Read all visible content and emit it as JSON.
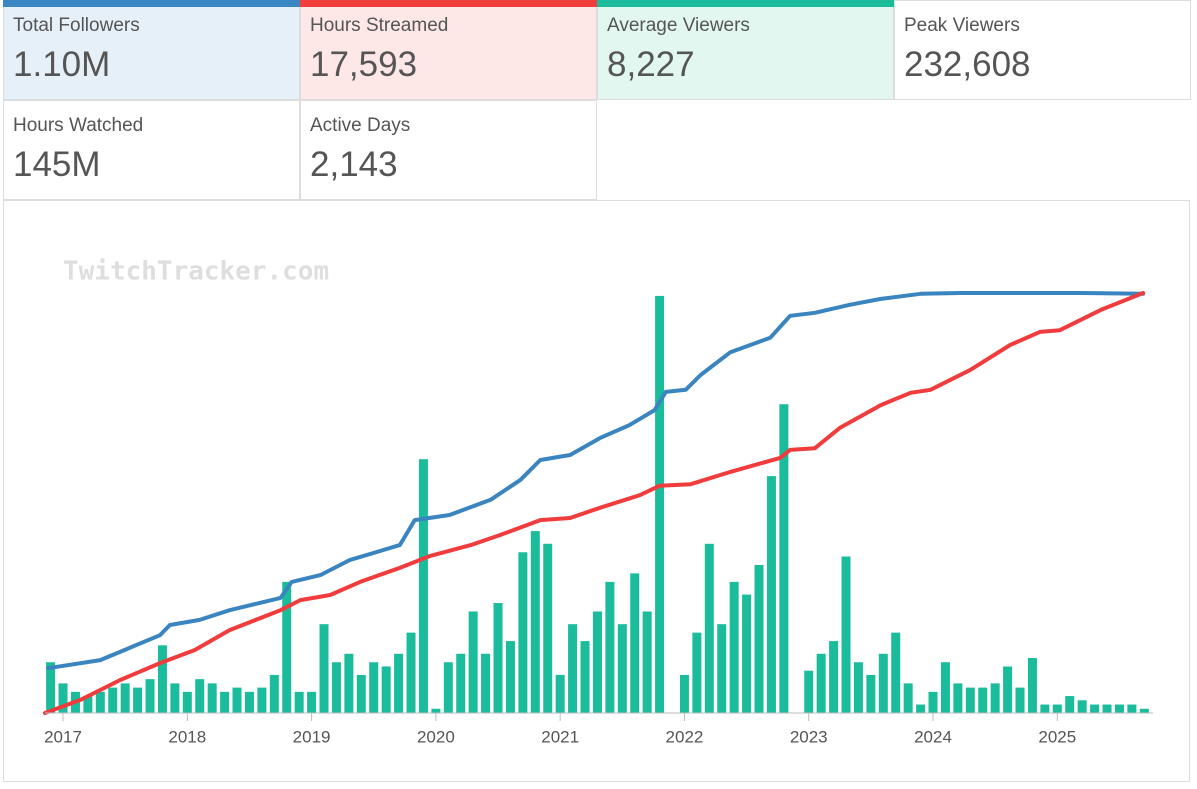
{
  "stats": [
    {
      "label": "Total Followers",
      "value": "1.10M",
      "color": "#3a87c4",
      "background": "#e6f0f8"
    },
    {
      "label": "Hours Streamed",
      "value": "17,593",
      "color": "#f23d3d",
      "background": "#fde7e7"
    },
    {
      "label": "Average Viewers",
      "value": "8,227",
      "color": "#1abc9c",
      "background": "#e3f7f1"
    },
    {
      "label": "Peak Viewers",
      "value": "232,608"
    },
    {
      "label": "Hours Watched",
      "value": "145M"
    },
    {
      "label": "Active Days",
      "value": "2,143"
    }
  ],
  "watermark": "TwitchTracker.com",
  "chart_data": {
    "type": "combo",
    "xlim": [
      2016.855,
      2025.77
    ],
    "ylim": [
      0,
      100
    ],
    "xticks": [
      2017,
      2018,
      2019,
      2020,
      2021,
      2022,
      2023,
      2024,
      2025
    ],
    "series": [
      {
        "type": "bar",
        "color": "#1abc9c",
        "x": [
          2016.9,
          2017.0,
          2017.1,
          2017.2,
          2017.3,
          2017.4,
          2017.5,
          2017.6,
          2017.7,
          2017.8,
          2017.9,
          2018.0,
          2018.1,
          2018.2,
          2018.3,
          2018.4,
          2018.5,
          2018.6,
          2018.7,
          2018.8,
          2018.9,
          2019.0,
          2019.1,
          2019.2,
          2019.3,
          2019.4,
          2019.5,
          2019.6,
          2019.7,
          2019.8,
          2019.9,
          2020.0,
          2020.1,
          2020.2,
          2020.3,
          2020.4,
          2020.5,
          2020.6,
          2020.7,
          2020.8,
          2020.9,
          2021.0,
          2021.1,
          2021.2,
          2021.3,
          2021.4,
          2021.5,
          2021.6,
          2021.7,
          2021.8,
          2021.9,
          2022.0,
          2022.1,
          2022.2,
          2022.3,
          2022.4,
          2022.5,
          2022.6,
          2022.7,
          2022.8,
          2022.9,
          2023.0,
          2023.1,
          2023.2,
          2023.3,
          2023.4,
          2023.5,
          2023.6,
          2023.7,
          2023.8,
          2023.9,
          2024.0,
          2024.1,
          2024.2,
          2024.3,
          2024.4,
          2024.5,
          2024.6,
          2024.7,
          2024.8,
          2024.9,
          2025.0,
          2025.1,
          2025.2,
          2025.3,
          2025.4,
          2025.5,
          2025.6,
          2025.7
        ],
        "values": [
          12,
          7,
          5,
          4,
          5,
          6,
          7,
          6,
          8,
          16,
          7,
          5,
          8,
          7,
          5,
          6,
          5,
          6,
          9,
          31,
          5,
          5,
          21,
          12,
          14,
          9,
          12,
          11,
          14,
          19,
          60,
          1,
          12,
          14,
          24,
          14,
          26,
          17,
          38,
          43,
          40,
          9,
          21,
          17,
          24,
          31,
          21,
          33,
          24,
          98.6,
          0,
          9,
          19,
          40,
          21,
          31,
          28,
          35,
          56,
          73,
          0,
          10,
          14,
          17,
          37,
          12,
          9,
          14,
          19,
          7,
          2,
          5,
          12,
          7,
          6,
          6,
          7,
          11,
          6,
          13,
          2,
          2,
          4,
          3,
          2,
          2,
          2,
          2,
          1
        ]
      },
      {
        "type": "line",
        "color": "#3a85c0",
        "x": [
          2016.88,
          2017.3,
          2017.78,
          2017.86,
          2018.1,
          2018.34,
          2018.75,
          2018.84,
          2019.07,
          2019.31,
          2019.71,
          2019.83,
          2020.11,
          2020.44,
          2020.68,
          2020.84,
          2021.08,
          2021.32,
          2021.56,
          2021.76,
          2021.85,
          2022.01,
          2022.13,
          2022.37,
          2022.69,
          2022.85,
          2023.05,
          2023.33,
          2023.58,
          2023.9,
          2024.22,
          2025.19,
          2025.69
        ],
        "values": [
          10.6,
          12.5,
          18.4,
          20.8,
          22.0,
          24.3,
          27.2,
          31.0,
          32.6,
          36.2,
          39.7,
          45.6,
          46.8,
          50.4,
          55.1,
          59.8,
          61.0,
          65.0,
          68.1,
          71.6,
          75.9,
          76.4,
          79.9,
          85.3,
          88.7,
          93.9,
          94.6,
          96.5,
          97.9,
          99.1,
          99.3,
          99.3,
          99.1
        ]
      },
      {
        "type": "line",
        "color": "#f03c3c",
        "x": [
          2016.855,
          2017.14,
          2017.46,
          2017.78,
          2018.06,
          2018.34,
          2018.75,
          2018.91,
          2019.15,
          2019.39,
          2019.71,
          2019.95,
          2020.28,
          2020.52,
          2020.84,
          2021.08,
          2021.32,
          2021.64,
          2021.8,
          2022.05,
          2022.37,
          2022.77,
          2022.85,
          2023.05,
          2023.25,
          2023.58,
          2023.82,
          2023.98,
          2024.3,
          2024.62,
          2024.86,
          2025.02,
          2025.35,
          2025.69
        ],
        "values": [
          0,
          3.1,
          7.8,
          11.8,
          14.9,
          19.6,
          24.3,
          26.7,
          27.9,
          31.0,
          34.3,
          37.1,
          39.7,
          42.1,
          45.6,
          46.1,
          48.5,
          51.5,
          53.7,
          54.1,
          57.0,
          60.3,
          62.2,
          62.6,
          67.4,
          72.8,
          75.7,
          76.4,
          81.1,
          87.0,
          90.1,
          90.5,
          95.3,
          99.3
        ]
      }
    ]
  }
}
